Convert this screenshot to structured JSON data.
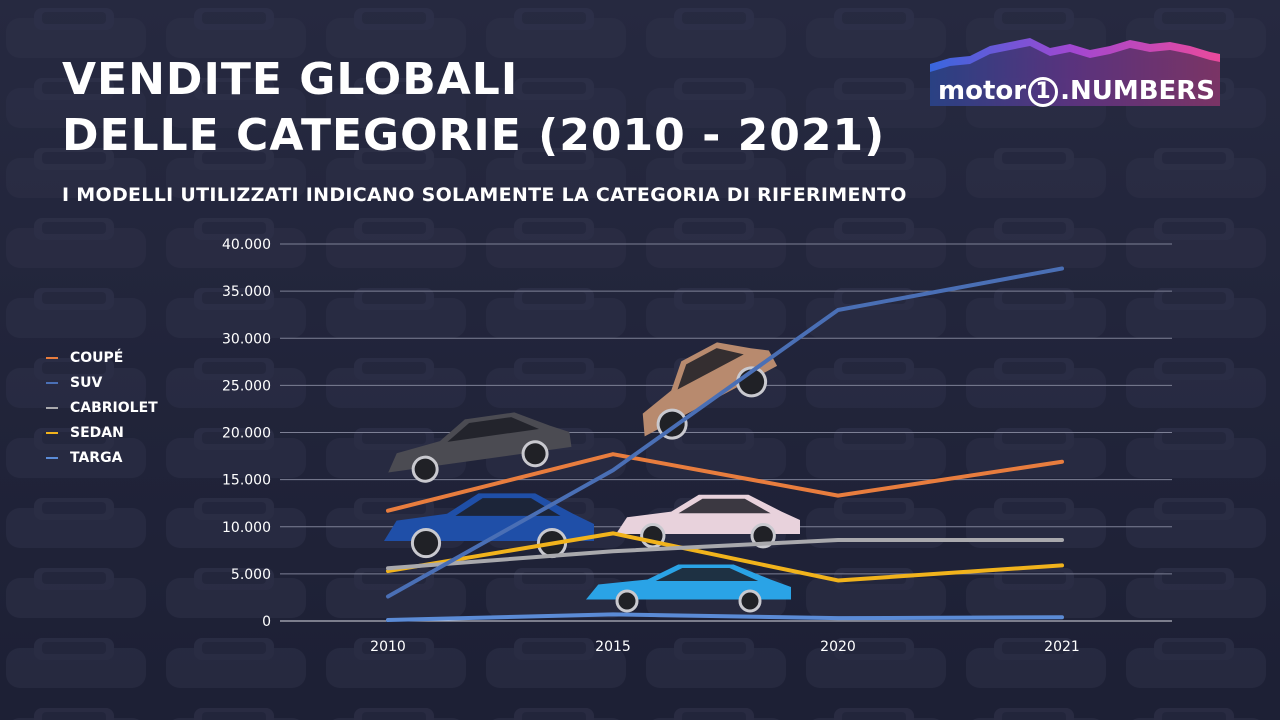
{
  "title_line1": "VENDITE GLOBALI",
  "title_line2": "DELLE CATEGORIE (2010 - 2021)",
  "subtitle": "I MODELLI UTILIZZATI INDICANO SOLAMENTE LA CATEGORIA DI RIFERIMENTO",
  "logo": {
    "text_a": "motor",
    "text_one": "1",
    "text_b": ".NUMBERS"
  },
  "chart_data": {
    "type": "line",
    "title": "VENDITE GLOBALI DELLE CATEGORIE (2010 - 2021)",
    "subtitle": "I MODELLI UTILIZZATI INDICANO SOLAMENTE LA CATEGORIA DI RIFERIMENTO",
    "xlabel": "",
    "ylabel": "",
    "categories": [
      "2010",
      "2015",
      "2020",
      "2021"
    ],
    "ylim": [
      0,
      40000
    ],
    "yticks": [
      0,
      5000,
      10000,
      15000,
      20000,
      25000,
      30000,
      35000,
      40000
    ],
    "ytick_labels": [
      "0",
      "5.000",
      "10.000",
      "15.000",
      "20.000",
      "25.000",
      "30.000",
      "35.000",
      "40.000"
    ],
    "grid": true,
    "legend_position": "left",
    "series": [
      {
        "name": "COUPÉ",
        "color": "#e87d3e",
        "values": [
          11700,
          17700,
          13300,
          16900
        ]
      },
      {
        "name": "SUV",
        "color": "#4a6fb5",
        "values": [
          2600,
          16000,
          33000,
          37400
        ]
      },
      {
        "name": "CABRIOLET",
        "color": "#a9a9ad",
        "values": [
          5600,
          7400,
          8600,
          8600
        ]
      },
      {
        "name": "SEDAN",
        "color": "#f1b31c",
        "values": [
          5300,
          9300,
          4300,
          5900
        ]
      },
      {
        "name": "TARGA",
        "color": "#5b8bd6",
        "values": [
          100,
          700,
          300,
          400
        ]
      }
    ]
  }
}
